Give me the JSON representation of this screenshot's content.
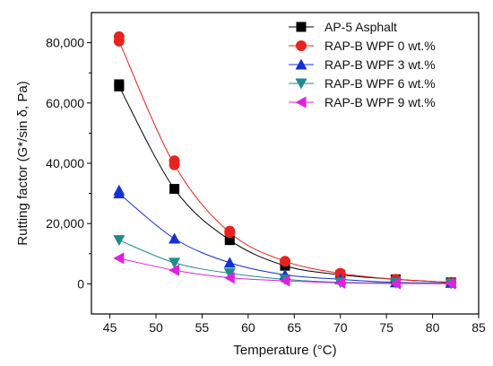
{
  "chart_data": {
    "type": "line",
    "xlabel": "Temperature (°C)",
    "ylabel": "Rutting factor (G*/sin δ, Pa)",
    "xlim": [
      43,
      85
    ],
    "ylim": [
      -10000,
      90000
    ],
    "xticks": [
      45,
      50,
      55,
      60,
      65,
      70,
      75,
      80,
      85
    ],
    "yticks": [
      0,
      20000,
      40000,
      60000,
      80000
    ],
    "ytick_labels": [
      "0",
      "20,000",
      "40,000",
      "60,000",
      "80,000"
    ],
    "grid": false,
    "legend_position": "top-right",
    "x": [
      46,
      52,
      58,
      64,
      70,
      76,
      82
    ],
    "series": [
      {
        "name": "AP-5 Asphalt",
        "color": "#000000",
        "marker": "square",
        "values": [
          65500,
          31500,
          14500,
          6000,
          3000,
          1500,
          500
        ],
        "replicate": [
          66200,
          null,
          null,
          null,
          null,
          null,
          null
        ]
      },
      {
        "name": "RAP-B WPF 0 wt.%",
        "color": "#e8231f",
        "marker": "circle",
        "values": [
          80500,
          39500,
          17000,
          7500,
          3500,
          1500,
          500
        ],
        "replicate": [
          82000,
          40800,
          17500,
          null,
          null,
          null,
          null
        ]
      },
      {
        "name": "RAP-B WPF 3 wt.%",
        "color": "#1430d8",
        "marker": "triangle-up",
        "values": [
          30000,
          15000,
          7000,
          3000,
          1500,
          500,
          300
        ],
        "replicate": [
          31000,
          null,
          null,
          null,
          null,
          null,
          null
        ]
      },
      {
        "name": "RAP-B WPF 6 wt.%",
        "color": "#1f8c8c",
        "marker": "triangle-down",
        "values": [
          14500,
          7000,
          3500,
          1500,
          500,
          300,
          100
        ],
        "replicate": [
          null,
          null,
          null,
          null,
          null,
          null,
          null
        ]
      },
      {
        "name": "RAP-B WPF 9 wt.%",
        "color": "#e020e0",
        "marker": "triangle-left",
        "values": [
          8500,
          4500,
          2000,
          1000,
          300,
          100,
          50
        ],
        "replicate": [
          null,
          null,
          null,
          null,
          null,
          null,
          null
        ]
      }
    ]
  }
}
